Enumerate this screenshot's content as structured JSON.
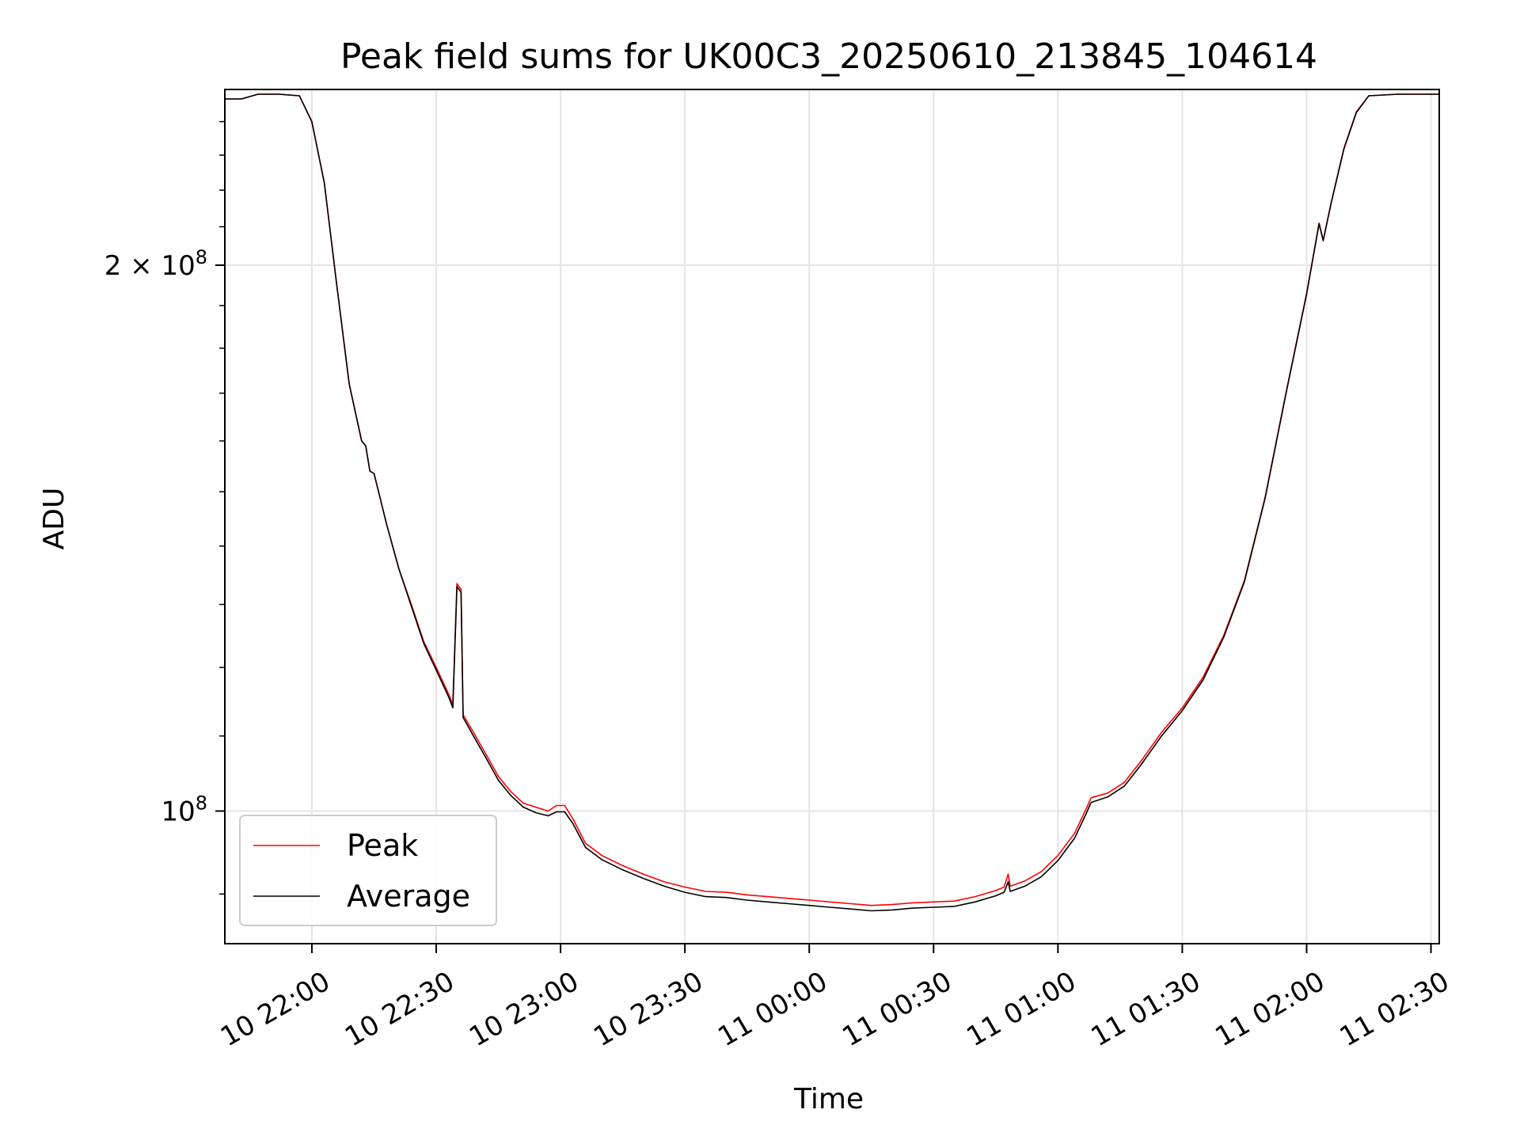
{
  "chart_data": {
    "type": "line",
    "title": "Peak field sums for UK00C3_20250610_213845_104614",
    "xlabel": "Time",
    "ylabel": "ADU",
    "x_ticks": [
      {
        "t": "2025-06-10T22:00",
        "label": "10 22:00"
      },
      {
        "t": "2025-06-10T22:30",
        "label": "10 22:30"
      },
      {
        "t": "2025-06-10T23:00",
        "label": "10 23:00"
      },
      {
        "t": "2025-06-10T23:30",
        "label": "10 23:30"
      },
      {
        "t": "2025-06-11T00:00",
        "label": "11 00:00"
      },
      {
        "t": "2025-06-11T00:30",
        "label": "11 00:30"
      },
      {
        "t": "2025-06-11T01:00",
        "label": "11 01:00"
      },
      {
        "t": "2025-06-11T01:30",
        "label": "11 01:30"
      },
      {
        "t": "2025-06-11T02:00",
        "label": "11 02:00"
      },
      {
        "t": "2025-06-11T02:30",
        "label": "11 02:30"
      }
    ],
    "y_scale": "log",
    "y_major_ticks": [
      {
        "value": 100000000,
        "label_base": "10",
        "label_exp": "8",
        "label_prefix": ""
      },
      {
        "value": 200000000,
        "label_base": "10",
        "label_exp": "8",
        "label_prefix": "2 × "
      }
    ],
    "xlim": [
      "2025-06-10T21:39",
      "2025-06-11T02:32"
    ],
    "ylim": [
      84500000,
      250000000
    ],
    "grid": true,
    "legend_position": "lower-left",
    "colors": {
      "Peak": "#ff0000",
      "Average": "#000000"
    },
    "series": [
      {
        "name": "Peak",
        "points": [
          [
            "2025-06-10T21:39",
            247000000
          ],
          [
            "2025-06-10T21:43",
            247000000
          ],
          [
            "2025-06-10T21:47",
            248500000
          ],
          [
            "2025-06-10T21:52",
            248500000
          ],
          [
            "2025-06-10T21:57",
            248000000
          ],
          [
            "2025-06-10T22:00",
            240000000
          ],
          [
            "2025-06-10T22:03",
            222000000
          ],
          [
            "2025-06-10T22:06",
            195000000
          ],
          [
            "2025-06-10T22:09",
            172000000
          ],
          [
            "2025-06-10T22:12",
            160000000
          ],
          [
            "2025-06-10T22:13",
            159000000
          ],
          [
            "2025-06-10T22:14",
            154000000
          ],
          [
            "2025-06-10T22:15",
            153500000
          ],
          [
            "2025-06-10T22:18",
            144000000
          ],
          [
            "2025-06-10T22:21",
            136000000
          ],
          [
            "2025-06-10T22:24",
            130000000
          ],
          [
            "2025-06-10T22:27",
            124000000
          ],
          [
            "2025-06-10T22:30",
            120000000
          ],
          [
            "2025-06-10T22:33",
            116000000
          ],
          [
            "2025-06-10T22:34",
            114500000
          ],
          [
            "2025-06-10T22:35",
            133500000
          ],
          [
            "2025-06-10T22:36",
            132500000
          ],
          [
            "2025-06-10T22:36.5",
            113000000
          ],
          [
            "2025-06-10T22:39",
            110500000
          ],
          [
            "2025-06-10T22:42",
            107500000
          ],
          [
            "2025-06-10T22:45",
            104500000
          ],
          [
            "2025-06-10T22:48",
            102500000
          ],
          [
            "2025-06-10T22:51",
            101000000
          ],
          [
            "2025-06-10T22:54",
            100500000
          ],
          [
            "2025-06-10T22:57",
            100000000
          ],
          [
            "2025-06-10T22:59",
            100700000
          ],
          [
            "2025-06-10T23:01",
            100700000
          ],
          [
            "2025-06-10T23:03",
            99000000
          ],
          [
            "2025-06-10T23:06",
            96000000
          ],
          [
            "2025-06-10T23:10",
            94500000
          ],
          [
            "2025-06-10T23:15",
            93300000
          ],
          [
            "2025-06-10T23:20",
            92300000
          ],
          [
            "2025-06-10T23:25",
            91400000
          ],
          [
            "2025-06-10T23:30",
            90800000
          ],
          [
            "2025-06-10T23:35",
            90300000
          ],
          [
            "2025-06-10T23:40",
            90200000
          ],
          [
            "2025-06-10T23:45",
            89900000
          ],
          [
            "2025-06-10T23:50",
            89700000
          ],
          [
            "2025-06-10T23:55",
            89500000
          ],
          [
            "2025-06-11T00:00",
            89300000
          ],
          [
            "2025-06-11T00:05",
            89100000
          ],
          [
            "2025-06-11T00:10",
            88900000
          ],
          [
            "2025-06-11T00:15",
            88700000
          ],
          [
            "2025-06-11T00:20",
            88800000
          ],
          [
            "2025-06-11T00:25",
            89000000
          ],
          [
            "2025-06-11T00:30",
            89100000
          ],
          [
            "2025-06-11T00:35",
            89200000
          ],
          [
            "2025-06-11T00:40",
            89700000
          ],
          [
            "2025-06-11T00:45",
            90400000
          ],
          [
            "2025-06-11T00:47",
            90800000
          ],
          [
            "2025-06-11T00:48",
            92300000
          ],
          [
            "2025-06-11T00:48.5",
            90900000
          ],
          [
            "2025-06-11T00:52",
            91500000
          ],
          [
            "2025-06-11T00:56",
            92600000
          ],
          [
            "2025-06-11T01:00",
            94500000
          ],
          [
            "2025-06-11T01:04",
            97200000
          ],
          [
            "2025-06-11T01:07",
            100500000
          ],
          [
            "2025-06-11T01:08",
            101700000
          ],
          [
            "2025-06-11T01:12",
            102300000
          ],
          [
            "2025-06-11T01:16",
            103700000
          ],
          [
            "2025-06-11T01:20",
            106500000
          ],
          [
            "2025-06-11T01:25",
            110500000
          ],
          [
            "2025-06-11T01:30",
            114000000
          ],
          [
            "2025-06-11T01:35",
            118500000
          ],
          [
            "2025-06-11T01:40",
            125000000
          ],
          [
            "2025-06-11T01:45",
            134000000
          ],
          [
            "2025-06-11T01:50",
            149000000
          ],
          [
            "2025-06-11T01:55",
            170000000
          ],
          [
            "2025-06-11T02:00",
            193000000
          ],
          [
            "2025-06-11T02:03",
            211000000
          ],
          [
            "2025-06-11T02:04",
            206500000
          ],
          [
            "2025-06-11T02:06",
            217000000
          ],
          [
            "2025-06-11T02:09",
            232000000
          ],
          [
            "2025-06-11T02:12",
            243000000
          ],
          [
            "2025-06-11T02:15",
            248000000
          ],
          [
            "2025-06-11T02:22",
            248500000
          ],
          [
            "2025-06-11T02:32",
            248500000
          ]
        ]
      },
      {
        "name": "Average",
        "points": [
          [
            "2025-06-10T21:39",
            247000000
          ],
          [
            "2025-06-10T21:43",
            247000000
          ],
          [
            "2025-06-10T21:47",
            248500000
          ],
          [
            "2025-06-10T21:52",
            248500000
          ],
          [
            "2025-06-10T21:57",
            248000000
          ],
          [
            "2025-06-10T22:00",
            240000000
          ],
          [
            "2025-06-10T22:03",
            222000000
          ],
          [
            "2025-06-10T22:06",
            195000000
          ],
          [
            "2025-06-10T22:09",
            172000000
          ],
          [
            "2025-06-10T22:12",
            160000000
          ],
          [
            "2025-06-10T22:13",
            159000000
          ],
          [
            "2025-06-10T22:14",
            154000000
          ],
          [
            "2025-06-10T22:15",
            153500000
          ],
          [
            "2025-06-10T22:18",
            144000000
          ],
          [
            "2025-06-10T22:21",
            136000000
          ],
          [
            "2025-06-10T22:24",
            129700000
          ],
          [
            "2025-06-10T22:27",
            123700000
          ],
          [
            "2025-06-10T22:30",
            119600000
          ],
          [
            "2025-06-10T22:33",
            115600000
          ],
          [
            "2025-06-10T22:34",
            114000000
          ],
          [
            "2025-06-10T22:35",
            133000000
          ],
          [
            "2025-06-10T22:36",
            132000000
          ],
          [
            "2025-06-10T22:36.5",
            112600000
          ],
          [
            "2025-06-10T22:39",
            110000000
          ],
          [
            "2025-06-10T22:42",
            107000000
          ],
          [
            "2025-06-10T22:45",
            104000000
          ],
          [
            "2025-06-10T22:48",
            102000000
          ],
          [
            "2025-06-10T22:51",
            100500000
          ],
          [
            "2025-06-10T22:54",
            99800000
          ],
          [
            "2025-06-10T22:57",
            99400000
          ],
          [
            "2025-06-10T22:59",
            99900000
          ],
          [
            "2025-06-10T23:01",
            99900000
          ],
          [
            "2025-06-10T23:03",
            98400000
          ],
          [
            "2025-06-10T23:06",
            95500000
          ],
          [
            "2025-06-10T23:10",
            94000000
          ],
          [
            "2025-06-10T23:15",
            92800000
          ],
          [
            "2025-06-10T23:20",
            91800000
          ],
          [
            "2025-06-10T23:25",
            90900000
          ],
          [
            "2025-06-10T23:30",
            90200000
          ],
          [
            "2025-06-10T23:35",
            89700000
          ],
          [
            "2025-06-10T23:40",
            89600000
          ],
          [
            "2025-06-10T23:45",
            89300000
          ],
          [
            "2025-06-10T23:50",
            89100000
          ],
          [
            "2025-06-10T23:55",
            88900000
          ],
          [
            "2025-06-11T00:00",
            88700000
          ],
          [
            "2025-06-11T00:05",
            88500000
          ],
          [
            "2025-06-11T00:10",
            88300000
          ],
          [
            "2025-06-11T00:15",
            88100000
          ],
          [
            "2025-06-11T00:20",
            88200000
          ],
          [
            "2025-06-11T00:25",
            88400000
          ],
          [
            "2025-06-11T00:30",
            88500000
          ],
          [
            "2025-06-11T00:35",
            88600000
          ],
          [
            "2025-06-11T00:40",
            89100000
          ],
          [
            "2025-06-11T00:45",
            89800000
          ],
          [
            "2025-06-11T00:47",
            90200000
          ],
          [
            "2025-06-11T00:48",
            91400000
          ],
          [
            "2025-06-11T00:48.5",
            90300000
          ],
          [
            "2025-06-11T00:52",
            90900000
          ],
          [
            "2025-06-11T00:56",
            92000000
          ],
          [
            "2025-06-11T01:00",
            93900000
          ],
          [
            "2025-06-11T01:04",
            96600000
          ],
          [
            "2025-06-11T01:07",
            99900000
          ],
          [
            "2025-06-11T01:08",
            101100000
          ],
          [
            "2025-06-11T01:12",
            101800000
          ],
          [
            "2025-06-11T01:16",
            103200000
          ],
          [
            "2025-06-11T01:20",
            106000000
          ],
          [
            "2025-06-11T01:25",
            110000000
          ],
          [
            "2025-06-11T01:30",
            113600000
          ],
          [
            "2025-06-11T01:35",
            118100000
          ],
          [
            "2025-06-11T01:40",
            124700000
          ],
          [
            "2025-06-11T01:45",
            133800000
          ],
          [
            "2025-06-11T01:50",
            148800000
          ],
          [
            "2025-06-11T01:55",
            169800000
          ],
          [
            "2025-06-11T02:00",
            192800000
          ],
          [
            "2025-06-11T02:03",
            210800000
          ],
          [
            "2025-06-11T02:04",
            206300000
          ],
          [
            "2025-06-11T02:06",
            216800000
          ],
          [
            "2025-06-11T02:09",
            231800000
          ],
          [
            "2025-06-11T02:12",
            242800000
          ],
          [
            "2025-06-11T02:15",
            248000000
          ],
          [
            "2025-06-11T02:22",
            248500000
          ],
          [
            "2025-06-11T02:32",
            248500000
          ]
        ]
      }
    ]
  }
}
